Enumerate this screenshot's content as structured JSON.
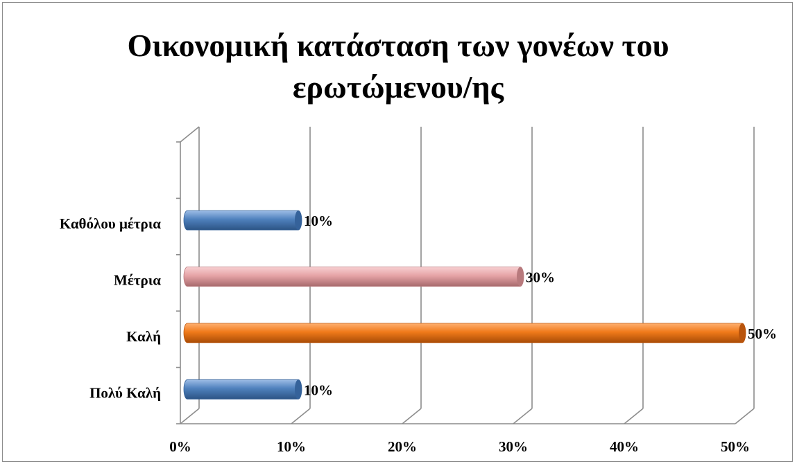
{
  "chart_data": {
    "type": "bar",
    "orientation": "horizontal",
    "title_lines": [
      "Οικονομική κατάσταση των γονέων του",
      "ερωτώμενου/ης"
    ],
    "categories": [
      "Πολύ Καλή",
      "Καλή",
      "Μέτρια",
      "Καθόλου μέτρια"
    ],
    "values": [
      10,
      50,
      30,
      10
    ],
    "value_labels": [
      "10%",
      "50%",
      "30%",
      "10%"
    ],
    "bar_colors": [
      "#4f81bd",
      "#f07a1a",
      "#e6a3a6",
      "#4f81bd"
    ],
    "x_ticks": [
      "0%",
      "10%",
      "20%",
      "30%",
      "40%",
      "50%"
    ],
    "xlim": [
      0,
      50
    ],
    "grid": true,
    "legend": false
  }
}
